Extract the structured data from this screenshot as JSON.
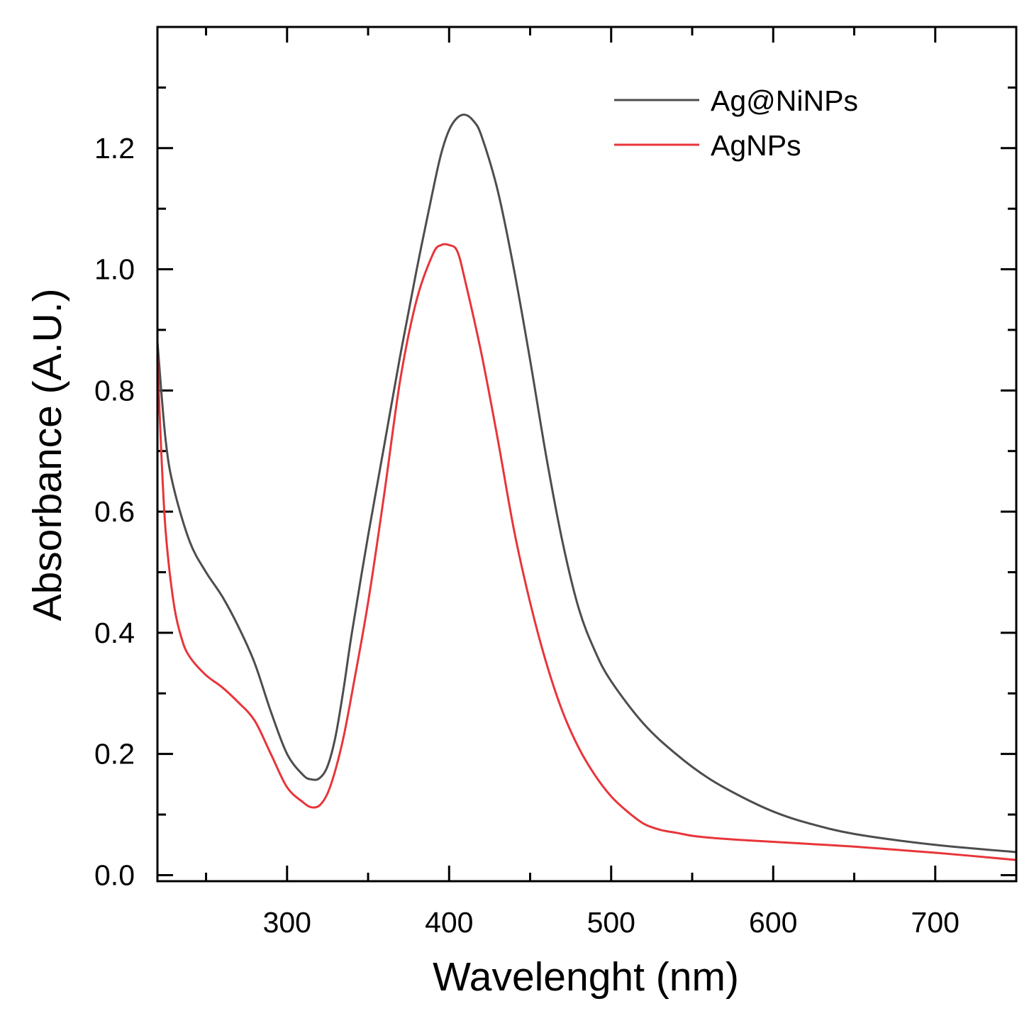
{
  "chart_data": {
    "type": "line",
    "title": "",
    "xlabel": "Wavelenght (nm)",
    "ylabel": "Absorbance (A.U.)",
    "xlim": [
      220,
      750
    ],
    "ylim": [
      -0.01,
      1.4
    ],
    "x_major_ticks": [
      300,
      400,
      500,
      600,
      700
    ],
    "x_tick_labels": [
      "300",
      "400",
      "500",
      "600",
      "700"
    ],
    "x_minor_ticks": [
      250,
      350,
      450,
      550,
      650
    ],
    "y_major_ticks": [
      0.0,
      0.2,
      0.4,
      0.6,
      0.8,
      1.0,
      1.2
    ],
    "y_tick_labels": [
      "0.0",
      "0.2",
      "0.4",
      "0.6",
      "0.8",
      "1.0",
      "1.2"
    ],
    "y_minor_ticks": [
      0.1,
      0.3,
      0.5,
      0.7,
      0.9,
      1.1,
      1.3
    ],
    "grid": false,
    "legend_position": "top-right",
    "series": [
      {
        "name": "Ag@NiNPs",
        "color": "#4d4d4d",
        "x": [
          220,
          225,
          230,
          240,
          250,
          260,
          270,
          280,
          290,
          300,
          310,
          315,
          320,
          325,
          330,
          335,
          340,
          350,
          360,
          370,
          380,
          390,
          395,
          400,
          405,
          410,
          415,
          420,
          430,
          440,
          450,
          460,
          470,
          480,
          490,
          500,
          520,
          540,
          560,
          580,
          600,
          620,
          650,
          700,
          750
        ],
        "y": [
          0.88,
          0.72,
          0.64,
          0.55,
          0.5,
          0.46,
          0.41,
          0.35,
          0.27,
          0.2,
          0.165,
          0.158,
          0.16,
          0.18,
          0.23,
          0.31,
          0.4,
          0.56,
          0.71,
          0.86,
          1.0,
          1.13,
          1.19,
          1.23,
          1.25,
          1.255,
          1.245,
          1.22,
          1.13,
          1.0,
          0.85,
          0.69,
          0.55,
          0.44,
          0.37,
          0.32,
          0.25,
          0.2,
          0.16,
          0.13,
          0.105,
          0.087,
          0.068,
          0.05,
          0.038
        ]
      },
      {
        "name": "AgNPs",
        "color": "#e8353a",
        "x": [
          220,
          222,
          225,
          230,
          235,
          240,
          250,
          260,
          270,
          280,
          290,
          300,
          310,
          315,
          320,
          325,
          330,
          335,
          340,
          350,
          360,
          370,
          380,
          390,
          395,
          400,
          405,
          410,
          420,
          430,
          440,
          450,
          460,
          470,
          480,
          490,
          500,
          510,
          520,
          530,
          540,
          550,
          560,
          580,
          600,
          650,
          700,
          750
        ],
        "y": [
          0.86,
          0.72,
          0.57,
          0.45,
          0.39,
          0.36,
          0.33,
          0.31,
          0.285,
          0.255,
          0.2,
          0.145,
          0.12,
          0.112,
          0.115,
          0.135,
          0.175,
          0.23,
          0.3,
          0.45,
          0.63,
          0.82,
          0.95,
          1.025,
          1.04,
          1.04,
          1.03,
          0.98,
          0.86,
          0.72,
          0.57,
          0.45,
          0.35,
          0.27,
          0.21,
          0.165,
          0.13,
          0.105,
          0.085,
          0.075,
          0.07,
          0.065,
          0.062,
          0.058,
          0.055,
          0.047,
          0.037,
          0.025
        ]
      }
    ]
  }
}
